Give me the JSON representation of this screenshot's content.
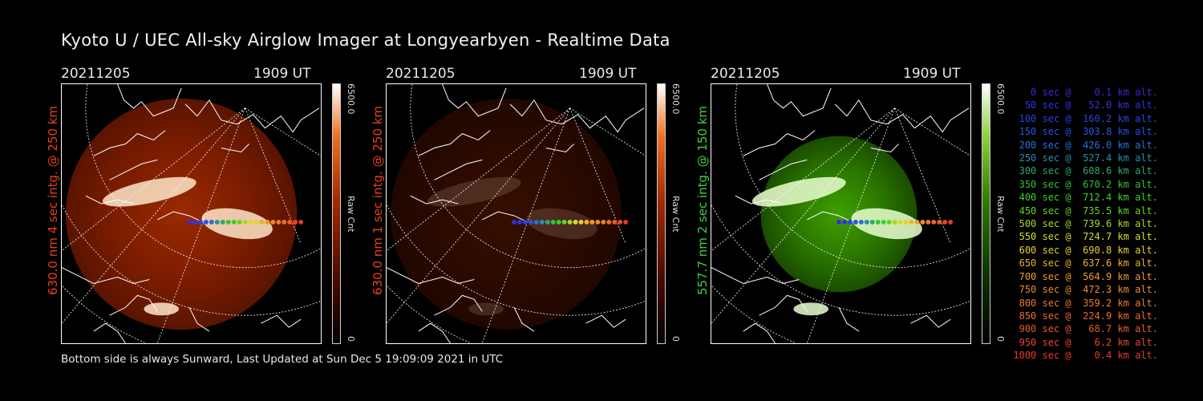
{
  "title": "Kyoto U / UEC All-sky Airglow Imager at Longyearbyen - Realtime Data",
  "panels": [
    {
      "date": "20211205",
      "time": "1909 UT",
      "label": "630.0 nm 4 sec intg. @ 250 km",
      "label_color": "#e8401a",
      "cbar_max": "6500.0",
      "cbar_min": "0",
      "cbar_unit": "Raw Cnt",
      "colormap": "red",
      "intensity": 1.0
    },
    {
      "date": "20211205",
      "time": "1909 UT",
      "label": "630.0 nm 1 sec intg. @ 250 km",
      "label_color": "#e8401a",
      "cbar_max": "6500.0",
      "cbar_min": "0",
      "cbar_unit": "Raw Cnt",
      "colormap": "red",
      "intensity": 0.35
    },
    {
      "date": "20211205",
      "time": "1909 UT",
      "label": "557.7 nm 2 sec intg. @ 150 km",
      "label_color": "#3ed13e",
      "cbar_max": "6500.0",
      "cbar_min": "0",
      "cbar_unit": "Raw Cnt",
      "colormap": "green",
      "intensity": 1.0
    }
  ],
  "legend": [
    {
      "text": "   0 sec @    0.1 km alt.",
      "color": "#3a2bd8"
    },
    {
      "text": "  50 sec @   52.0 km alt.",
      "color": "#2f35e0"
    },
    {
      "text": " 100 sec @  160.2 km alt.",
      "color": "#2845e6"
    },
    {
      "text": " 150 sec @  303.8 km alt.",
      "color": "#2455e8"
    },
    {
      "text": " 200 sec @  426.0 km alt.",
      "color": "#2a6fd8"
    },
    {
      "text": " 250 sec @  527.4 km alt.",
      "color": "#2a8fa8"
    },
    {
      "text": " 300 sec @  608.6 km alt.",
      "color": "#2ea86e"
    },
    {
      "text": " 350 sec @  670.2 km alt.",
      "color": "#34c23a"
    },
    {
      "text": " 400 sec @  712.4 km alt.",
      "color": "#3cd02a"
    },
    {
      "text": " 450 sec @  735.5 km alt.",
      "color": "#62d428"
    },
    {
      "text": " 500 sec @  739.6 km alt.",
      "color": "#a6d826"
    },
    {
      "text": " 550 sec @  724.7 km alt.",
      "color": "#d8dc28"
    },
    {
      "text": " 600 sec @  690.8 km alt.",
      "color": "#e8d02a"
    },
    {
      "text": " 650 sec @  637.6 km alt.",
      "color": "#ebb12a"
    },
    {
      "text": " 700 sec @  564.9 km alt.",
      "color": "#ec9a2a"
    },
    {
      "text": " 750 sec @  472.3 km alt.",
      "color": "#ec8a2c"
    },
    {
      "text": " 800 sec @  359.2 km alt.",
      "color": "#eb7a2e"
    },
    {
      "text": " 850 sec @  224.9 km alt.",
      "color": "#ea6a2e"
    },
    {
      "text": " 900 sec @   68.7 km alt.",
      "color": "#e85a2c"
    },
    {
      "text": " 950 sec @    6.2 km alt.",
      "color": "#e6482a"
    },
    {
      "text": "1000 sec @    0.4 km alt.",
      "color": "#e43a28"
    }
  ],
  "footer": "Bottom side is always Sunward, Last Updated at Sun Dec  5 19:09:09 2021 in UTC"
}
